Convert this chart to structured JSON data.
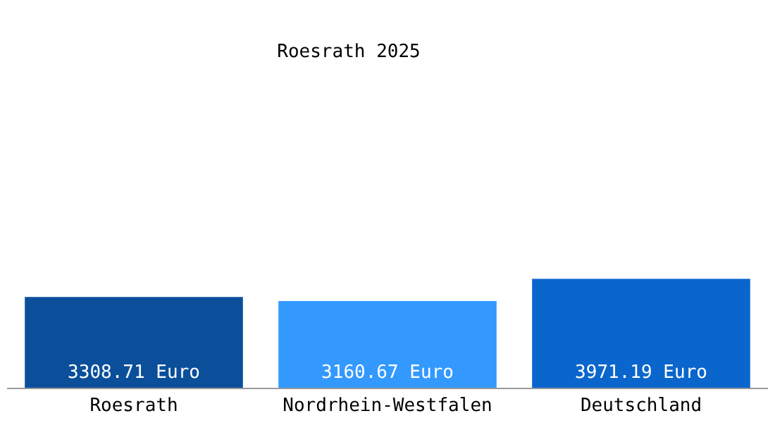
{
  "chart_data": {
    "type": "bar",
    "title": "Roesrath 2025",
    "categories": [
      "Roesrath",
      "Nordrhein-Westfalen",
      "Deutschland"
    ],
    "values": [
      3308.71,
      3160.67,
      3971.19
    ],
    "colors": [
      "#0b4f9b",
      "#3399ff",
      "#0a66cc"
    ],
    "value_labels": [
      "3308.71 Euro",
      "3160.67 Euro",
      "3971.19 Euro"
    ]
  }
}
